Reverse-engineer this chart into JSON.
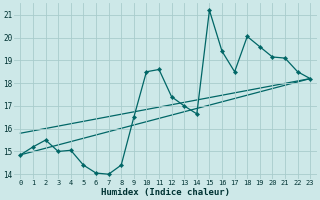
{
  "xlabel": "Humidex (Indice chaleur)",
  "ylabel": "",
  "background_color": "#cde8e8",
  "grid_color": "#a8cccc",
  "line_color": "#006666",
  "xlim": [
    -0.5,
    23.5
  ],
  "ylim": [
    13.8,
    21.5
  ],
  "yticks": [
    14,
    15,
    16,
    17,
    18,
    19,
    20,
    21
  ],
  "xticks": [
    0,
    1,
    2,
    3,
    4,
    5,
    6,
    7,
    8,
    9,
    10,
    11,
    12,
    13,
    14,
    15,
    16,
    17,
    18,
    19,
    20,
    21,
    22,
    23
  ],
  "series1_x": [
    0,
    1,
    2,
    3,
    4,
    5,
    6,
    7,
    8,
    9,
    10,
    11,
    12,
    13,
    14,
    15,
    16,
    17,
    18,
    19,
    20,
    21,
    22,
    23
  ],
  "series1_y": [
    14.85,
    15.2,
    15.5,
    15.0,
    15.05,
    14.4,
    14.05,
    14.0,
    14.4,
    16.5,
    18.5,
    18.6,
    17.4,
    17.0,
    16.65,
    21.2,
    19.4,
    18.5,
    20.05,
    19.6,
    19.15,
    19.1,
    18.5,
    18.2
  ],
  "series2_x": [
    0,
    23
  ],
  "series2_y": [
    14.85,
    18.2
  ],
  "series3_x": [
    0,
    23
  ],
  "series3_y": [
    15.8,
    18.2
  ],
  "xlabel_fontsize": 6.5,
  "tick_fontsize": 5.5
}
